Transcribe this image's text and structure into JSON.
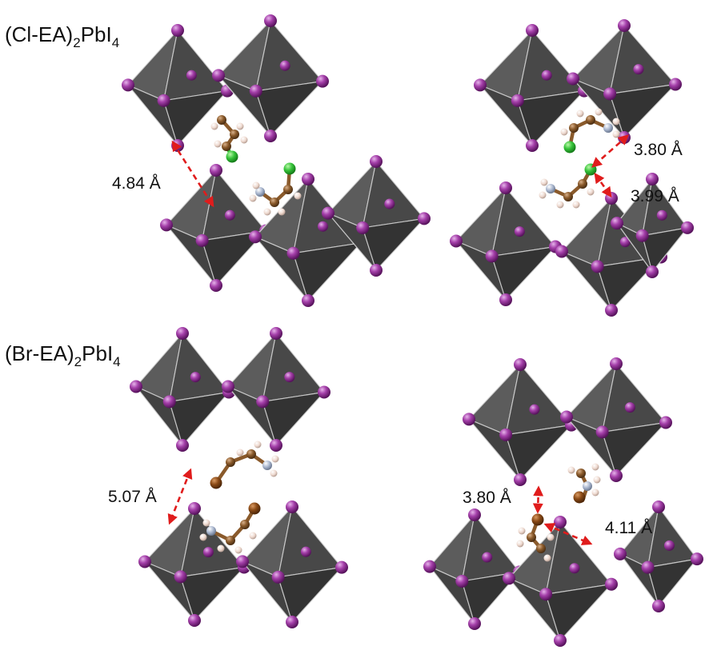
{
  "figure": {
    "panels": [
      {
        "title": {
          "prefix": "(Cl-EA)",
          "sub1": "2",
          "mid": "PbI",
          "sub2": "4"
        },
        "distances": [
          "4.84 Å",
          "3.80 Å",
          "3.99 Å"
        ]
      },
      {
        "title": {
          "prefix": "(Br-EA)",
          "sub1": "2",
          "mid": "PbI",
          "sub2": "4"
        },
        "distances": [
          "5.07 Å",
          "3.80 Å",
          "4.11 Å"
        ]
      }
    ],
    "colors": {
      "octahedron": "#4a4a4a",
      "iodine": "#9a2c9e",
      "carbon": "#8a5a2b",
      "nitrogen": "#aab7cf",
      "hydrogen": "#eed9cf",
      "chlorine": "#36c33a",
      "bromine": "#8a4a16",
      "distance_arrow": "#e01c1c"
    }
  }
}
